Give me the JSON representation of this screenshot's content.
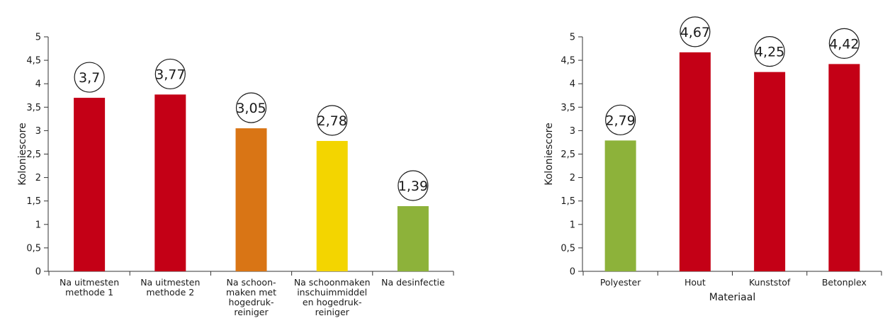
{
  "chart_data": [
    {
      "type": "bar",
      "ylabel": "Koloniescore",
      "xlabel": "",
      "ylim": [
        0,
        5
      ],
      "yticks": [
        "0",
        "0,5",
        "1",
        "1,5",
        "2",
        "2,5",
        "3",
        "3,5",
        "4",
        "4,5",
        "5"
      ],
      "categories": [
        [
          "Na uitmesten",
          "methode 1"
        ],
        [
          "Na uitmesten",
          "methode 2"
        ],
        [
          "Na schoon-",
          "maken met",
          "hogedruk-",
          "reiniger"
        ],
        [
          "Na schoonmaken",
          "inschuimmiddel",
          "en hogedruk-",
          "reiniger"
        ],
        [
          "Na desinfectie"
        ]
      ],
      "values": [
        3.7,
        3.77,
        3.05,
        2.78,
        1.39
      ],
      "value_labels": [
        "3,7",
        "3,77",
        "3,05",
        "2,78",
        "1,39"
      ],
      "colors": [
        "#c40016",
        "#c40016",
        "#d97515",
        "#f3d500",
        "#8db23a"
      ]
    },
    {
      "type": "bar",
      "ylabel": "Koloniescore",
      "xlabel": "Materiaal",
      "ylim": [
        0,
        5
      ],
      "yticks": [
        "0",
        "0,5",
        "1",
        "1,5",
        "2",
        "2,5",
        "3",
        "3,5",
        "4",
        "4,5",
        "5"
      ],
      "categories": [
        [
          "Polyester"
        ],
        [
          "Hout"
        ],
        [
          "Kunststof"
        ],
        [
          "Betonplex"
        ]
      ],
      "values": [
        2.79,
        4.67,
        4.25,
        4.42
      ],
      "value_labels": [
        "2,79",
        "4,67",
        "4,25",
        "4,42"
      ],
      "colors": [
        "#8db23a",
        "#c40016",
        "#c40016",
        "#c40016"
      ]
    }
  ]
}
